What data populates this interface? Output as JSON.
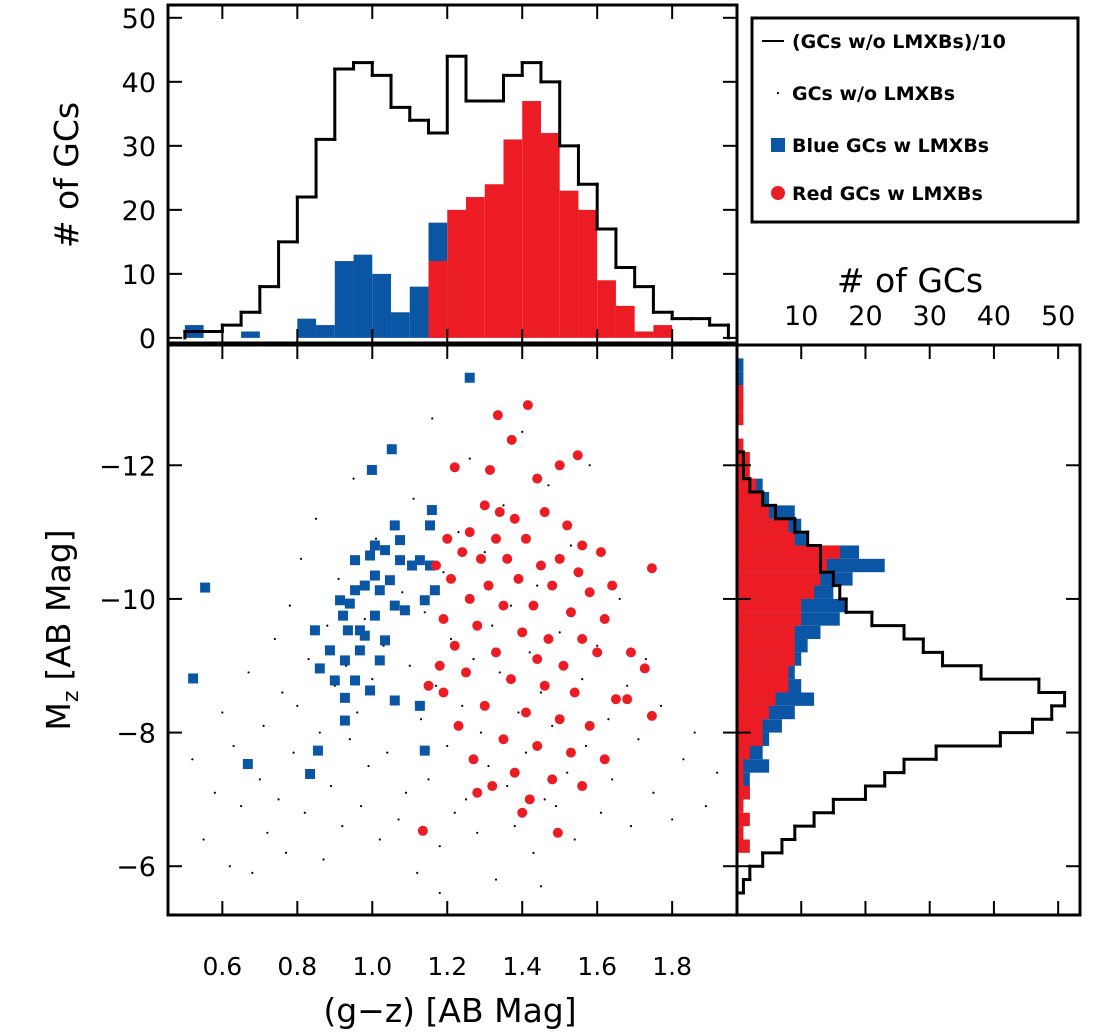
{
  "chart_data": [
    {
      "type": "histogram",
      "orientation": "vertical",
      "y_label": "# of GCs",
      "ylim": [
        -0.8,
        52
      ],
      "yticks": [
        0,
        10,
        20,
        30,
        40,
        50
      ],
      "bins": [
        0.5,
        0.55,
        0.6,
        0.65,
        0.7,
        0.75,
        0.8,
        0.85,
        0.9,
        0.95,
        1.0,
        1.05,
        1.1,
        1.15,
        1.2,
        1.25,
        1.3,
        1.35,
        1.4,
        1.45,
        1.5,
        1.55,
        1.6,
        1.65,
        1.7,
        1.75,
        1.8,
        1.85,
        1.9,
        1.95
      ],
      "series": [
        {
          "name": "(GCs w/o LMXBs)/10",
          "color": "#000000",
          "style": "step",
          "values": [
            1,
            1,
            2,
            4,
            8,
            15,
            22,
            31,
            42,
            43,
            41,
            36,
            34,
            32,
            44,
            37,
            37,
            41,
            43,
            40,
            30,
            24,
            17,
            11,
            8,
            4,
            3,
            3,
            2
          ]
        },
        {
          "color": "#0b56a4",
          "style": "bar",
          "values": [
            2,
            0,
            0,
            1,
            0,
            0,
            3,
            2,
            12,
            13,
            10,
            4,
            8,
            18,
            0,
            0,
            0,
            0,
            0,
            0,
            0,
            0,
            0,
            0,
            0,
            0,
            0,
            0,
            0
          ]
        },
        {
          "color": "#ec1c24",
          "style": "bar",
          "values": [
            0,
            0,
            0,
            0,
            0,
            0,
            0,
            0,
            0,
            0,
            0,
            0,
            0,
            12,
            20,
            22,
            24,
            31,
            37,
            32,
            23,
            20,
            9,
            5,
            1,
            2,
            0,
            0,
            0
          ]
        }
      ]
    },
    {
      "type": "scatter",
      "x_label": "(g−z) [AB Mag]",
      "y_label": {
        "symbol": "M",
        "subscript": "z",
        "unit": "[AB Mag]"
      },
      "xlim": [
        0.455,
        1.973
      ],
      "xticks": [
        0.6,
        0.8,
        {
          "value": 1.0,
          "label": "1.0"
        },
        1.2,
        1.4,
        1.6,
        1.8
      ],
      "ylim": [
        -5.27,
        -13.8
      ],
      "yticks": [
        {
          "value": -12,
          "label": "−12"
        },
        {
          "value": -10,
          "label": "−10"
        },
        {
          "value": -8,
          "label": "−8"
        },
        {
          "value": -6,
          "label": "−6"
        }
      ],
      "legend": "upper right",
      "series": [
        {
          "name": "GCs w/o LMXBs",
          "color": "#000000",
          "marker": "dot",
          "x": [
            0.52,
            0.55,
            0.58,
            0.6,
            0.62,
            0.63,
            0.65,
            0.67,
            0.68,
            0.7,
            0.71,
            0.72,
            0.74,
            0.75,
            0.76,
            0.77,
            0.78,
            0.79,
            0.8,
            0.81,
            0.82,
            0.83,
            0.84,
            0.85,
            0.86,
            0.87,
            0.88,
            0.89,
            0.9,
            0.91,
            0.92,
            0.93,
            0.94,
            0.95,
            0.96,
            0.97,
            0.98,
            0.99,
            1.0,
            1.01,
            1.02,
            1.03,
            1.04,
            1.05,
            1.06,
            1.07,
            1.08,
            1.09,
            1.1,
            1.11,
            1.12,
            1.13,
            1.14,
            1.15,
            1.16,
            1.17,
            1.18,
            1.19,
            1.2,
            1.21,
            1.22,
            1.23,
            1.24,
            1.25,
            1.26,
            1.27,
            1.28,
            1.29,
            1.3,
            1.31,
            1.32,
            1.33,
            1.34,
            1.35,
            1.36,
            1.37,
            1.38,
            1.39,
            1.4,
            1.41,
            1.42,
            1.43,
            1.44,
            1.45,
            1.46,
            1.47,
            1.48,
            1.49,
            1.5,
            1.52,
            1.53,
            1.54,
            1.56,
            1.57,
            1.58,
            1.6,
            1.61,
            1.63,
            1.64,
            1.66,
            1.68,
            1.69,
            1.71,
            1.73,
            1.75,
            1.77,
            1.8,
            1.83,
            1.86,
            1.89,
            1.92,
            1.18,
            1.45
          ],
          "y": [
            -7.6,
            -6.4,
            -7.1,
            -8.3,
            -6.0,
            -7.8,
            -6.9,
            -8.9,
            -5.9,
            -7.3,
            -8.1,
            -6.5,
            -9.4,
            -7.0,
            -8.6,
            -6.2,
            -9.9,
            -7.7,
            -8.4,
            -10.6,
            -6.8,
            -9.1,
            -7.4,
            -11.2,
            -8.0,
            -6.1,
            -9.6,
            -7.2,
            -8.7,
            -10.3,
            -6.6,
            -9.0,
            -7.9,
            -11.8,
            -8.3,
            -6.9,
            -9.7,
            -7.5,
            -8.8,
            -10.9,
            -6.4,
            -9.3,
            -7.7,
            -12.3,
            -8.5,
            -6.7,
            -10.1,
            -7.1,
            -9.0,
            -11.5,
            -5.9,
            -8.2,
            -9.8,
            -7.3,
            -12.7,
            -8.7,
            -6.3,
            -10.4,
            -7.8,
            -9.4,
            -6.8,
            -11.0,
            -8.4,
            -7.0,
            -12.1,
            -9.1,
            -6.5,
            -8.0,
            -10.7,
            -7.5,
            -9.6,
            -5.8,
            -8.9,
            -11.4,
            -7.2,
            -9.9,
            -6.6,
            -8.3,
            -12.5,
            -7.7,
            -9.2,
            -6.2,
            -10.2,
            -8.6,
            -7.0,
            -11.7,
            -8.1,
            -6.9,
            -9.5,
            -7.4,
            -10.8,
            -6.4,
            -8.8,
            -7.8,
            -12.0,
            -9.3,
            -6.8,
            -8.2,
            -7.3,
            -10.0,
            -8.7,
            -6.6,
            -7.9,
            -9.1,
            -7.1,
            -8.4,
            -6.7,
            -7.6,
            -8.0,
            -6.9,
            -7.4,
            -5.6,
            -5.7
          ]
        },
        {
          "name": "Blue GCs w LMXBs",
          "color": "#0b56a4",
          "marker": "square",
          "x": [
            1.26,
            1.052,
            0.999,
            0.554,
            0.522,
            0.668,
            0.834,
            0.855,
            0.927,
            0.9,
            0.927,
            0.86,
            0.887,
            0.847,
            0.922,
            0.94,
            0.954,
            0.98,
            1.007,
            1.047,
            1.074,
            1.106,
            1.127,
            1.154,
            1.167,
            1.14,
            1.087,
            1.06,
            1.02,
            1.007,
            0.98,
            1.034,
            1.02,
            0.967,
            0.927,
            0.954,
            0.994,
            1.06,
            1.127,
            1.14,
            1.154,
            1.159,
            1.06,
            1.074,
            1.034,
            1.007,
            0.994,
            0.954,
            0.967,
            0.914,
            0.935
          ],
          "y": [
            -13.31,
            -12.24,
            -11.93,
            -10.17,
            -8.81,
            -7.53,
            -7.38,
            -7.73,
            -8.52,
            -8.78,
            -8.18,
            -8.96,
            -9.23,
            -9.53,
            -9.75,
            -9.93,
            -10.13,
            -10.2,
            -10.35,
            -10.28,
            -10.58,
            -10.5,
            -10.58,
            -10.5,
            -10.13,
            -9.98,
            -9.83,
            -9.9,
            -10.13,
            -9.75,
            -9.45,
            -9.38,
            -9.08,
            -9.23,
            -9.08,
            -8.78,
            -8.63,
            -8.48,
            -8.4,
            -7.73,
            -11.1,
            -11.33,
            -11.1,
            -10.88,
            -10.73,
            -10.8,
            -10.65,
            -10.58,
            -9.53,
            -9.98,
            -9.53
          ]
        },
        {
          "name": "Red GCs w LMXBs",
          "color": "#ec1c24",
          "marker": "circle",
          "x": [
            1.415,
            1.335,
            1.372,
            1.548,
            1.22,
            1.314,
            1.746,
            1.135,
            1.495,
            1.727,
            1.746,
            1.5,
            1.44,
            1.3,
            1.34,
            1.38,
            1.46,
            1.52,
            1.26,
            1.33,
            1.41,
            1.56,
            1.61,
            1.2,
            1.24,
            1.29,
            1.36,
            1.45,
            1.5,
            1.55,
            1.17,
            1.21,
            1.31,
            1.39,
            1.48,
            1.58,
            1.64,
            1.26,
            1.35,
            1.43,
            1.53,
            1.62,
            1.19,
            1.28,
            1.4,
            1.47,
            1.56,
            1.22,
            1.33,
            1.44,
            1.51,
            1.6,
            1.69,
            1.25,
            1.37,
            1.46,
            1.54,
            1.65,
            1.19,
            1.3,
            1.41,
            1.5,
            1.58,
            1.68,
            1.23,
            1.35,
            1.44,
            1.53,
            1.62,
            1.27,
            1.38,
            1.48,
            1.56,
            1.32,
            1.42,
            1.4,
            1.28,
            1.18,
            1.15
          ],
          "y": [
            -12.9,
            -12.75,
            -12.38,
            -12.15,
            -11.97,
            -11.93,
            -10.46,
            -6.53,
            -6.5,
            -8.96,
            -8.25,
            -12.0,
            -11.8,
            -11.4,
            -11.3,
            -11.2,
            -11.3,
            -11.1,
            -11.0,
            -10.9,
            -10.9,
            -10.8,
            -10.7,
            -10.9,
            -10.7,
            -10.6,
            -10.6,
            -10.5,
            -10.6,
            -10.4,
            -10.5,
            -10.3,
            -10.2,
            -10.3,
            -10.2,
            -10.1,
            -10.2,
            -10.0,
            -9.9,
            -9.9,
            -9.8,
            -9.7,
            -9.7,
            -9.6,
            -9.5,
            -9.4,
            -9.4,
            -9.3,
            -9.2,
            -9.1,
            -9.0,
            -9.2,
            -9.2,
            -8.9,
            -8.8,
            -8.7,
            -8.6,
            -8.5,
            -8.6,
            -8.4,
            -8.3,
            -8.2,
            -8.1,
            -8.5,
            -8.1,
            -7.9,
            -7.8,
            -7.7,
            -7.6,
            -7.6,
            -7.4,
            -7.3,
            -7.2,
            -7.2,
            -7.0,
            -6.8,
            -7.1,
            -9.0,
            -8.7
          ]
        }
      ]
    },
    {
      "type": "histogram",
      "orientation": "horizontal",
      "x_label": "# of GCs",
      "xlim": [
        0,
        53.4
      ],
      "xticks": [
        10,
        20,
        30,
        40,
        50
      ],
      "bins": [
        -13.6,
        -13.4,
        -13.2,
        -13.0,
        -12.8,
        -12.6,
        -12.4,
        -12.2,
        -12.0,
        -11.8,
        -11.6,
        -11.4,
        -11.2,
        -11.0,
        -10.8,
        -10.6,
        -10.4,
        -10.2,
        -10.0,
        -9.8,
        -9.6,
        -9.4,
        -9.2,
        -9.0,
        -8.8,
        -8.6,
        -8.4,
        -8.2,
        -8.0,
        -7.8,
        -7.6,
        -7.4,
        -7.2,
        -7.0,
        -6.8,
        -6.6,
        -6.4,
        -6.2,
        -6.0,
        -5.8,
        -5.6,
        -5.4
      ],
      "series": [
        {
          "color": "#000000",
          "style": "step",
          "values": [
            0,
            0,
            0,
            0,
            0,
            0,
            0,
            1,
            1,
            2,
            4,
            6,
            9,
            11,
            13,
            13,
            15,
            16,
            17,
            21,
            26,
            29,
            32,
            38,
            47,
            51,
            49,
            46,
            41,
            31,
            26,
            23,
            20,
            15,
            12,
            9,
            7,
            4,
            2,
            1,
            0
          ]
        },
        {
          "color": "#0b56a4",
          "style": "bar",
          "values": [
            1,
            1,
            0,
            0,
            0,
            0,
            0,
            0,
            0,
            4,
            5,
            9,
            10,
            11,
            19,
            23,
            18,
            15,
            17,
            16,
            13,
            11,
            10,
            9,
            10,
            12,
            9,
            7,
            5,
            4,
            5,
            2,
            2,
            0,
            0,
            0,
            0,
            0,
            0,
            0,
            0
          ]
        },
        {
          "color": "#ec1c24",
          "style": "bar",
          "values": [
            0,
            0,
            1,
            1,
            1,
            0,
            1,
            2,
            2,
            3,
            4,
            5,
            8,
            9,
            16,
            14,
            13,
            12,
            10,
            10,
            9,
            9,
            9,
            8,
            8,
            6,
            5,
            4,
            4,
            2,
            1,
            1,
            2,
            1,
            2,
            1,
            2,
            0,
            0,
            0,
            0
          ]
        }
      ]
    }
  ]
}
